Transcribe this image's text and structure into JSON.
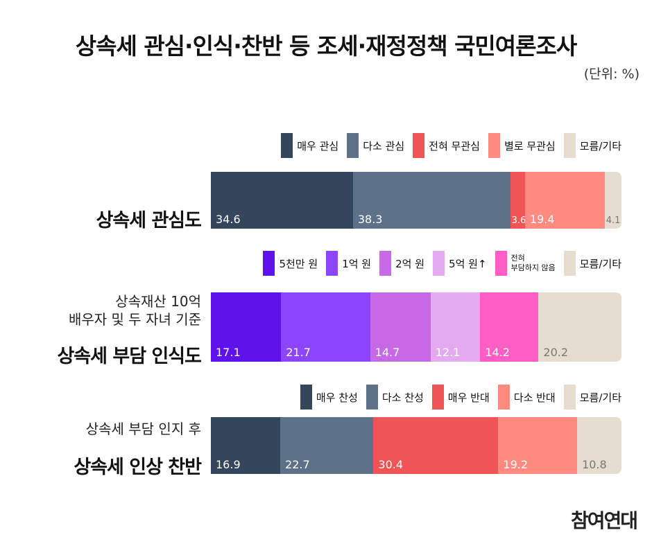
{
  "title": "상속세 관심·인식·찬반 등 조세·재정정책 국민여론조사",
  "unit": "(단위: %)",
  "logo": "참여연대",
  "chart_data": [
    {
      "type": "bar",
      "label": "상속세 관심도",
      "subtitle": "",
      "series": [
        {
          "name": "매우 관심",
          "value": 34.6,
          "color": "#34465c"
        },
        {
          "name": "다소 관심",
          "value": 38.3,
          "color": "#5d7189"
        },
        {
          "name": "전혀 무관심",
          "value": 3.6,
          "color": "#f05555"
        },
        {
          "name": "별로 무관심",
          "value": 19.4,
          "color": "#ff8a80"
        },
        {
          "name": "모름/기타",
          "value": 4.1,
          "color": "#e6ddd0"
        }
      ]
    },
    {
      "type": "bar",
      "label": "상속세 부담 인식도",
      "subtitle": "상속재산 10억\n배우자 및 두 자녀 기준",
      "series": [
        {
          "name": "5천만 원",
          "value": 17.1,
          "color": "#5f13ea"
        },
        {
          "name": "1억 원",
          "value": 21.7,
          "color": "#8c45fb"
        },
        {
          "name": "2억 원",
          "value": 14.7,
          "color": "#c769e4"
        },
        {
          "name": "5억 원↑",
          "value": 12.1,
          "color": "#e3aaef"
        },
        {
          "name": "전혀\n부담하지 않음",
          "value": 14.2,
          "color": "#ff5ec4"
        },
        {
          "name": "모름/기타",
          "value": 20.2,
          "color": "#e6ddd0"
        }
      ]
    },
    {
      "type": "bar",
      "label": "상속세 인상 찬반",
      "subtitle": "상속세 부담 인지 후",
      "series": [
        {
          "name": "매우 찬성",
          "value": 16.9,
          "color": "#34465c"
        },
        {
          "name": "다소 찬성",
          "value": 22.7,
          "color": "#5d7189"
        },
        {
          "name": "매우 반대",
          "value": 30.4,
          "color": "#f05555"
        },
        {
          "name": "다소 반대",
          "value": 19.2,
          "color": "#ff8a80"
        },
        {
          "name": "모름/기타",
          "value": 10.8,
          "color": "#e6ddd0"
        }
      ]
    }
  ]
}
